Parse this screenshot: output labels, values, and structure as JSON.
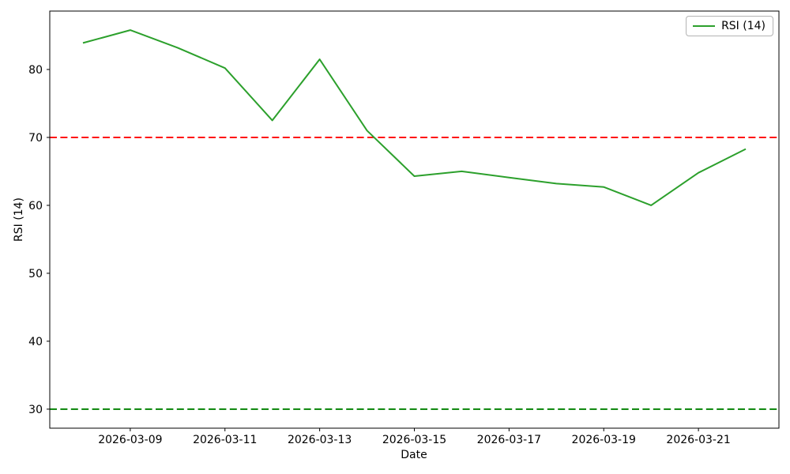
{
  "chart_data": {
    "type": "line",
    "title": "",
    "xlabel": "Date",
    "ylabel": "RSI (14)",
    "x": [
      "2026-03-08",
      "2026-03-09",
      "2026-03-10",
      "2026-03-11",
      "2026-03-12",
      "2026-03-13",
      "2026-03-14",
      "2026-03-15",
      "2026-03-16",
      "2026-03-17",
      "2026-03-18",
      "2026-03-19",
      "2026-03-20",
      "2026-03-21",
      "2026-03-22"
    ],
    "series": [
      {
        "name": "RSI (14)",
        "color": "#2ca02c",
        "values": [
          83.9,
          85.8,
          83.2,
          80.2,
          72.5,
          81.5,
          71.0,
          64.3,
          65.0,
          64.1,
          63.2,
          62.7,
          60.0,
          64.8,
          68.3
        ]
      }
    ],
    "reference_lines": [
      {
        "name": "overbought-70",
        "value": 70,
        "color": "#ff0000",
        "style": "dashed"
      },
      {
        "name": "oversold-30",
        "value": 30,
        "color": "#008000",
        "style": "dashed"
      }
    ],
    "yticks": [
      30,
      40,
      50,
      60,
      70,
      80
    ],
    "xtick_labels": [
      "2026-03-09",
      "2026-03-11",
      "2026-03-13",
      "2026-03-15",
      "2026-03-17",
      "2026-03-19",
      "2026-03-21"
    ],
    "ylim": [
      27.2,
      88.6
    ],
    "xlim_pad_days": 0.7,
    "grid": false,
    "legend": {
      "position": "upper-right",
      "label": "RSI (14)"
    }
  }
}
